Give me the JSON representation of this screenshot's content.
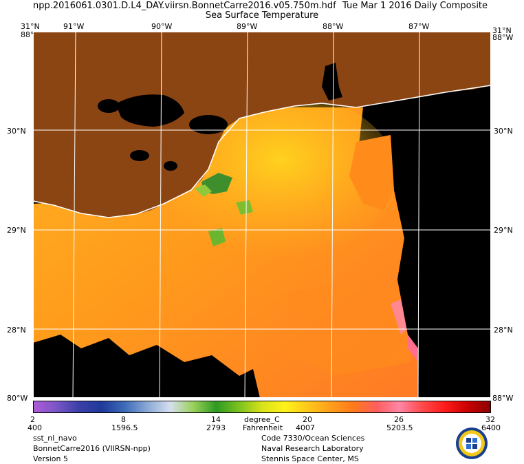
{
  "header": {
    "file_name": "npp.2016061.0301.D.L4_DAY.viirsn.BonnetCarre2016.v05.750m.hdf",
    "date_label": "Tue Mar  1 2016 Daily Composite",
    "subtitle": "Sea Surface Temperature"
  },
  "map": {
    "lon_labels_top": [
      "91°W",
      "90°W",
      "89°W",
      "88°W",
      "87°W"
    ],
    "lat_labels_left": [
      "30°N",
      "29°N",
      "28°N"
    ],
    "lat_labels_right": [
      "30°N",
      "29°N",
      "28°N"
    ],
    "corner_top_left": "31°N",
    "corner_top_left_2": "88°W",
    "corner_top_right": "31°N",
    "corner_top_right_2": "88°W",
    "corner_bottom_left": "80°W",
    "corner_bottom_right": "88°W",
    "colors": {
      "land": "#8B4513",
      "no_data": "#000000",
      "coastline": "#ffffff",
      "grid": "#ffffff",
      "warm_water": "#FF8C1A",
      "mid_water": "#FFB020",
      "shelf_water": "#FFD21E",
      "plume_green": "#3E8E2E",
      "hot_pink": "#FF6E8C"
    }
  },
  "colorbar": {
    "colors": [
      "#B05BD6",
      "#7B56C8",
      "#3B3FA8",
      "#1F3A9A",
      "#3D6BB8",
      "#8BA9D6",
      "#D6DEEE",
      "#9AD05A",
      "#2E9A22",
      "#7BC21F",
      "#D8E21A",
      "#FFF21A",
      "#FFC81A",
      "#FF9E1A",
      "#FF7A1A",
      "#FF5E5E",
      "#FF86A6",
      "#FF4A4A",
      "#FF1A1A",
      "#C80000",
      "#8A0000"
    ],
    "celsius_labels": [
      "2",
      "8",
      "14",
      "20",
      "26",
      "32"
    ],
    "fahrenheit_labels": [
      "400",
      "1596.5",
      "2793",
      "4007",
      "5203.5",
      "6400"
    ],
    "unit_c": "degree_C",
    "unit_f": "Fahrenheit"
  },
  "footer": {
    "left": [
      "sst_nl_navo",
      "BonnetCarre2016 (VIIRSN-npp)",
      "Version 5"
    ],
    "center": [
      "Code 7330/Ocean Sciences",
      "Naval Research Laboratory",
      "Stennis Space Center, MS"
    ]
  }
}
